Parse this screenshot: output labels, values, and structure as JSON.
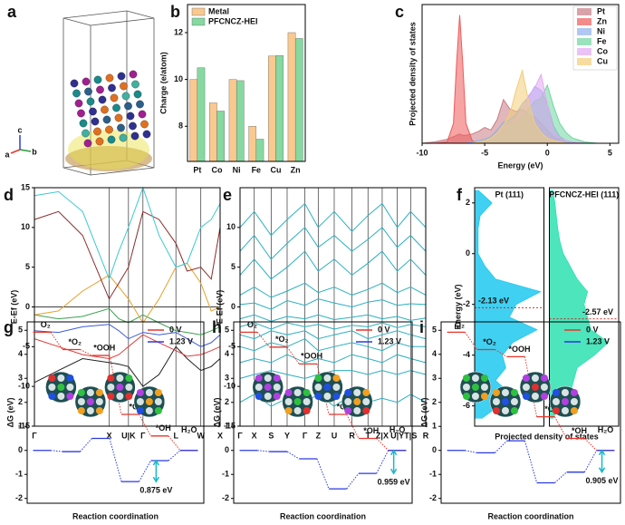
{
  "chart_data": [
    {
      "type": "structure",
      "panel_label": "a",
      "axis_labels": [
        "c",
        "a",
        "b"
      ]
    },
    {
      "type": "bar",
      "panel_label": "b",
      "ylabel": "Charge (e/atom)",
      "categories": [
        "Pt",
        "Co",
        "Ni",
        "Fe",
        "Cu",
        "Zn"
      ],
      "series": [
        {
          "name": "Metal",
          "color": "#f9c98f",
          "values": [
            10,
            9,
            10,
            8,
            11,
            12
          ]
        },
        {
          "name": "PFCNCZ-HEI",
          "color": "#86d9a0",
          "values": [
            10.5,
            8.65,
            9.95,
            7.45,
            11.02,
            11.75
          ]
        }
      ],
      "ylim": [
        6.5,
        13.2
      ],
      "yticks": [
        8,
        10,
        12
      ],
      "legend": "upper left"
    },
    {
      "type": "area",
      "panel_label": "c",
      "xlabel": "Energy (eV)",
      "ylabel": "Projected density of states",
      "x": [
        -10,
        -9,
        -8,
        -7.5,
        -7.25,
        -7,
        -6.75,
        -6.5,
        -6,
        -5.5,
        -5,
        -4.5,
        -4,
        -3.5,
        -3,
        -2.5,
        -2,
        -1.5,
        -1,
        -0.5,
        0,
        0.5,
        1,
        1.5,
        2,
        3,
        4,
        5
      ],
      "series": [
        {
          "name": "Pt",
          "color": "#c97b84",
          "values": [
            0,
            0.1,
            0.3,
            0.5,
            0.6,
            0.7,
            0.6,
            0.6,
            0.7,
            0.9,
            1.2,
            1.0,
            1.8,
            3.3,
            2.6,
            2.4,
            2.6,
            2.2,
            2.0,
            1.5,
            1.0,
            0.5,
            0.3,
            0.2,
            0.1,
            0,
            0,
            0
          ]
        },
        {
          "name": "Zn",
          "color": "#ee5a5a",
          "values": [
            0,
            0,
            0.1,
            1.5,
            6,
            9.7,
            6,
            1.5,
            0.2,
            0,
            0,
            0,
            0,
            0,
            0,
            0,
            0,
            0,
            0,
            0,
            0,
            0,
            0,
            0,
            0,
            0,
            0,
            0
          ]
        },
        {
          "name": "Ni",
          "color": "#8fb0ee",
          "values": [
            0,
            0,
            0,
            0,
            0,
            0,
            0,
            0,
            0.1,
            0.2,
            0.3,
            0.5,
            1.0,
            1.6,
            1.8,
            2.2,
            3.0,
            3.5,
            4.3,
            4.0,
            3.0,
            1.3,
            0.5,
            0.2,
            0.1,
            0,
            0,
            0
          ]
        },
        {
          "name": "Fe",
          "color": "#6fd6a0",
          "values": [
            0,
            0,
            0,
            0,
            0,
            0,
            0,
            0,
            0,
            0.1,
            0.2,
            0.3,
            0.6,
            1.0,
            1.3,
            1.6,
            2.0,
            2.6,
            3.2,
            3.4,
            4.4,
            2.8,
            1.5,
            0.8,
            0.4,
            0.1,
            0,
            0
          ]
        },
        {
          "name": "Co",
          "color": "#e2a8f2",
          "values": [
            0,
            0,
            0,
            0,
            0,
            0,
            0,
            0,
            0,
            0.1,
            0.2,
            0.4,
            0.8,
            1.2,
            1.4,
            1.8,
            2.6,
            3.6,
            4.2,
            5.2,
            3.0,
            1.0,
            0.4,
            0.2,
            0.1,
            0,
            0,
            0
          ]
        },
        {
          "name": "Cu",
          "color": "#f3cd78",
          "values": [
            0,
            0,
            0,
            0,
            0,
            0,
            0,
            0,
            0,
            0.1,
            0.2,
            0.4,
            0.8,
            1.4,
            2.2,
            4.0,
            5.5,
            3.2,
            1.5,
            0.8,
            0.4,
            0.2,
            0.1,
            0,
            0,
            0,
            0,
            0
          ]
        }
      ],
      "xlim": [
        -10,
        5.7
      ],
      "xticks": [
        -10,
        -5,
        0,
        5
      ],
      "ylim": [
        0,
        10.5
      ],
      "legend": "upper right"
    },
    {
      "type": "bands",
      "panel_label": "d",
      "ylabel": "E-Ef (eV)",
      "x": [
        0,
        30,
        60,
        93,
        105,
        117,
        135,
        155,
        176,
        190,
        207,
        220,
        231
      ],
      "series": [
        {
          "color": "#222222",
          "values": [
            -9.5,
            -8,
            -6.5,
            -7,
            -7.2,
            -7.5,
            -10,
            -8.5,
            -5,
            -6.5,
            -8,
            -7.5,
            -6.5
          ]
        },
        {
          "color": "#e03c3c",
          "values": [
            -4,
            -5,
            -6,
            -6.5,
            -6,
            -5,
            -3.5,
            -4.5,
            -5.5,
            -6.2,
            -6,
            -5.5,
            -5
          ]
        },
        {
          "color": "#3c5ad2",
          "values": [
            -3,
            -3.2,
            -2.5,
            -2.2,
            -3,
            -4,
            -3.2,
            -3.5,
            -3.2,
            -4,
            -5,
            -4.5,
            -3.5
          ]
        },
        {
          "color": "#3ca050",
          "values": [
            -1,
            -1.5,
            -1.2,
            -0.2,
            -1.5,
            -2,
            -1,
            -2,
            -3,
            -3.2,
            -3.5,
            -3,
            -2.5
          ]
        },
        {
          "color": "#e6a028",
          "values": [
            -1,
            -0.5,
            2,
            4,
            2.5,
            1,
            -2,
            1,
            5,
            5.5,
            3,
            -0.5,
            0
          ]
        },
        {
          "color": "#8b2a2a",
          "values": [
            11,
            12,
            9,
            1,
            3,
            5,
            12,
            11,
            8,
            4.5,
            5,
            3.5,
            10
          ]
        },
        {
          "color": "#3cc8d2",
          "values": [
            14,
            14.5,
            12,
            3.5,
            7,
            10,
            15,
            9,
            5,
            5.5,
            10,
            11,
            13
          ]
        }
      ],
      "xlim": [
        0,
        231
      ],
      "xticks": [
        {
          "value": 0,
          "label": "Γ"
        },
        {
          "value": 93,
          "label": "X"
        },
        {
          "value": 117,
          "label": "U|K"
        },
        {
          "value": 135,
          "label": "Γ"
        },
        {
          "value": 176,
          "label": "L"
        },
        {
          "value": 207,
          "label": "W"
        },
        {
          "value": 231,
          "label": "X"
        }
      ],
      "ylim": [
        -15,
        15
      ],
      "yticks": [
        -15,
        -10,
        -5,
        0,
        5,
        10,
        15
      ],
      "zero_line": true
    },
    {
      "type": "bands",
      "panel_label": "e",
      "ylabel": "E-Ef (eV)",
      "color": "#2ab0c0",
      "x": [
        0,
        16,
        35,
        53,
        73,
        88,
        106,
        126,
        144,
        160,
        177,
        192,
        209
      ],
      "series": [
        {
          "values": [
            -12,
            -11,
            -12.5,
            -11.5,
            -12,
            -11,
            -12.5,
            -11,
            -12,
            -11.5,
            -12,
            -11,
            -12
          ]
        },
        {
          "values": [
            -9,
            -8.5,
            -8,
            -8.5,
            -9,
            -8.5,
            -8,
            -8,
            -8.5,
            -8,
            -8.5,
            -8,
            -8.5
          ]
        },
        {
          "values": [
            -7,
            -6.5,
            -7,
            -6,
            -7,
            -6.5,
            -7,
            -6,
            -6.5,
            -7,
            -6,
            -6.5,
            -7
          ]
        },
        {
          "values": [
            -5,
            -5.5,
            -4.5,
            -5,
            -4,
            -5.5,
            -5,
            -4.5,
            -5,
            -5.5,
            -4.5,
            -5,
            -5
          ]
        },
        {
          "values": [
            -3.5,
            -4,
            -3,
            -3.5,
            -3,
            -4,
            -3.5,
            -3,
            -4,
            -3.5,
            -3,
            -3.5,
            -4
          ]
        },
        {
          "values": [
            -2.5,
            -2,
            -2.8,
            -2,
            -2.5,
            -2.2,
            -2.8,
            -2.3,
            -2.5,
            -2,
            -2.6,
            -2.2,
            -2.5
          ]
        },
        {
          "values": [
            -1.5,
            -1,
            -1.8,
            -1.2,
            -1.5,
            -1,
            -1.6,
            -1.3,
            -1,
            -1.5,
            -1.2,
            -1.7,
            -1.4
          ]
        },
        {
          "values": [
            0.3,
            0.5,
            -0.3,
            0.8,
            0.2,
            1.0,
            0.5,
            0.0,
            0.6,
            0.9,
            0.2,
            0.4,
            0.3
          ]
        },
        {
          "values": [
            1.5,
            2.5,
            1.2,
            2.0,
            3.0,
            1.8,
            2.5,
            1.5,
            2.2,
            3.0,
            1.8,
            2.5,
            1.5
          ]
        },
        {
          "values": [
            4,
            6,
            3.5,
            5,
            7,
            4.5,
            6,
            4,
            5.5,
            7,
            4.5,
            6,
            4
          ]
        },
        {
          "values": [
            7,
            9,
            6,
            8,
            10,
            7.5,
            9,
            7,
            8.5,
            10,
            7.5,
            9,
            7
          ]
        },
        {
          "values": [
            10,
            12,
            9,
            11,
            13,
            10,
            12,
            9.5,
            11.5,
            13,
            10,
            12,
            10
          ]
        }
      ],
      "xlim": [
        0,
        209
      ],
      "xticks": [
        {
          "value": 0,
          "label": "Γ"
        },
        {
          "value": 16,
          "label": "X"
        },
        {
          "value": 35,
          "label": "S"
        },
        {
          "value": 53,
          "label": "Y"
        },
        {
          "value": 73,
          "label": "Γ"
        },
        {
          "value": 88,
          "label": "Z"
        },
        {
          "value": 106,
          "label": "U"
        },
        {
          "value": 126,
          "label": "R"
        },
        {
          "value": 144,
          "label": "T"
        },
        {
          "value": 160,
          "label": "Z|X"
        },
        {
          "value": 177,
          "label": "U|Y"
        },
        {
          "value": 192,
          "label": "T|S"
        },
        {
          "value": 209,
          "label": "R"
        }
      ],
      "ylim": [
        -15,
        15
      ],
      "yticks": [
        -15,
        -10,
        -5,
        0,
        5,
        10
      ],
      "zero_line": false
    },
    {
      "type": "dos",
      "panel_label": "f",
      "ylabel": "Energy (eV)",
      "xlabel": "Projected density of states",
      "y": [
        -6.5,
        -6,
        -5.5,
        -5,
        -4.5,
        -4,
        -3.5,
        -3,
        -2.5,
        -2,
        -1.5,
        -1,
        -0.5,
        0,
        0.5,
        1,
        1.5,
        2,
        2.5
      ],
      "ylim": [
        -6.8,
        2.6
      ],
      "yticks": [
        -6,
        -4,
        -2,
        0,
        2
      ],
      "xlim": [
        0,
        1
      ],
      "panels": [
        {
          "title": "Pt (111)",
          "color": "#1ec8f0",
          "values": [
            0.1,
            0.35,
            0.5,
            0.3,
            0.45,
            0.4,
            0.55,
            0.9,
            0.5,
            0.6,
            0.95,
            0.3,
            0.15,
            0.05,
            0.05,
            0.05,
            0.08,
            0.25,
            0.05
          ],
          "d_band": -2.13,
          "d_band_label": "-2.13 eV"
        },
        {
          "title": "PFCNCZ-HEI (111)",
          "color": "#2ee0b0",
          "values": [
            0.05,
            0.15,
            0.3,
            0.35,
            0.4,
            0.65,
            0.85,
            0.6,
            0.55,
            0.5,
            0.55,
            0.4,
            0.3,
            0.2,
            0.15,
            0.12,
            0.1,
            0.08,
            0.05
          ],
          "d_band": -2.57,
          "d_band_label": "-2.57 eV"
        }
      ]
    },
    {
      "type": "energy",
      "panel_label": "g",
      "ylabel": "ΔG (eV)",
      "xlabel": "Reaction coordination",
      "steps": [
        "O₂",
        "*O₂",
        "*OOH",
        "*O",
        "*OH",
        "H₂O"
      ],
      "series": [
        {
          "name": "0 V",
          "color": "#e8352a",
          "values": [
            4.92,
            4.2,
            3.95,
            1.5,
            0.6,
            0
          ]
        },
        {
          "name": "1.23 V",
          "color": "#2a3ae0",
          "values": [
            0,
            -0.05,
            0.5,
            -1.3,
            -0.425,
            0
          ]
        }
      ],
      "ylim": [
        -2.2,
        5.35
      ],
      "yticks": [
        -2,
        -1,
        0,
        1,
        2,
        3,
        4,
        5
      ],
      "gap": 0.875,
      "gap_label": "0.875 eV",
      "legend": "upper right"
    },
    {
      "type": "energy",
      "panel_label": "h",
      "ylabel": "ΔG (eV)",
      "xlabel": "Reaction coordination",
      "steps": [
        "O₂",
        "*O₂",
        "*OOH",
        "*O",
        "*OH",
        "H₂O"
      ],
      "series": [
        {
          "name": "0 V",
          "color": "#e8352a",
          "values": [
            4.92,
            4.3,
            3.6,
            1.5,
            0.5,
            0
          ]
        },
        {
          "name": "1.23 V",
          "color": "#2a3ae0",
          "values": [
            0,
            -0.05,
            -0.35,
            -1.6,
            -0.959,
            0
          ]
        }
      ],
      "ylim": [
        -2.2,
        5.35
      ],
      "yticks": [
        -2,
        -1,
        0,
        1,
        2,
        3,
        4,
        5
      ],
      "gap": 0.959,
      "gap_label": "0.959 eV",
      "legend": "upper right"
    },
    {
      "type": "energy",
      "panel_label": "i",
      "ylabel": "ΔG (eV)",
      "xlabel": "Reaction coordination",
      "steps": [
        "O₂",
        "*O₂",
        "*OOH",
        "*O",
        "*OH",
        "H₂O"
      ],
      "series": [
        {
          "name": "0 V",
          "color": "#e8352a",
          "values": [
            4.92,
            4.2,
            3.9,
            1.4,
            0.5,
            0
          ]
        },
        {
          "name": "1.23 V",
          "color": "#2a3ae0",
          "values": [
            0,
            -0.1,
            0.4,
            -1.35,
            -0.905,
            0
          ]
        }
      ],
      "ylim": [
        -2.2,
        5.35
      ],
      "yticks": [
        -2,
        -1,
        0,
        1,
        2,
        3,
        4,
        5
      ],
      "gap": 0.905,
      "gap_label": "0.905 eV",
      "legend": "upper right"
    }
  ]
}
